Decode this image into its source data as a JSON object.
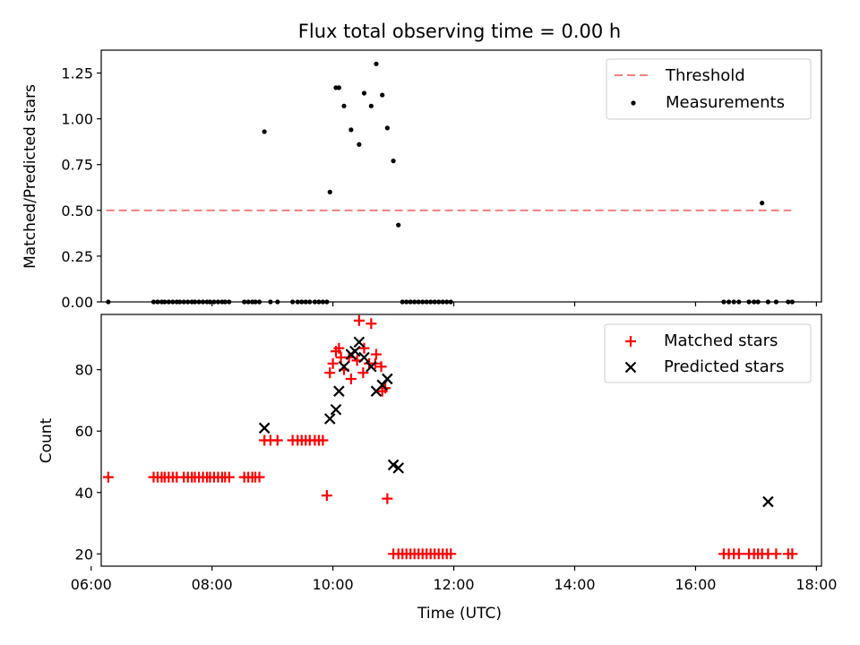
{
  "title": "Flux total observing time = 0.00 h",
  "colors": {
    "threshold": "#f08080",
    "measurements": "#000000",
    "matched": "#ff0000",
    "predicted": "#000000"
  },
  "chart_data": [
    {
      "type": "scatter",
      "title": "Flux total observing time = 0.00 h",
      "ylabel": "Matched/Predicted stars",
      "xlim": [
        "06:10",
        "18:05"
      ],
      "ylim": [
        0,
        1.375
      ],
      "yticks": [
        "0.00",
        "0.25",
        "0.50",
        "0.75",
        "1.00",
        "1.25"
      ],
      "legend_position": "upper right",
      "threshold": {
        "label": "Threshold",
        "value": 0.5,
        "x": [
          "06:15",
          "17:35"
        ]
      },
      "measurements": {
        "label": "Measurements",
        "x": [
          "06:17",
          "07:02",
          "07:06",
          "07:10",
          "07:13",
          "07:17",
          "07:21",
          "07:25",
          "07:28",
          "07:32",
          "07:36",
          "07:40",
          "07:43",
          "07:47",
          "07:51",
          "07:55",
          "07:58",
          "08:02",
          "08:06",
          "08:10",
          "08:13",
          "08:17",
          "08:32",
          "08:36",
          "08:40",
          "08:43",
          "08:47",
          "08:52",
          "08:58",
          "09:05",
          "09:20",
          "09:25",
          "09:29",
          "09:33",
          "09:37",
          "09:42",
          "09:46",
          "09:50",
          "09:54",
          "09:57",
          "10:03",
          "10:06",
          "10:11",
          "10:18",
          "10:26",
          "10:31",
          "10:38",
          "10:43",
          "10:49",
          "10:54",
          "11:00",
          "11:05",
          "11:09",
          "11:13",
          "11:17",
          "11:21",
          "11:25",
          "11:29",
          "11:33",
          "11:37",
          "11:41",
          "11:45",
          "11:49",
          "11:53",
          "11:57",
          "16:28",
          "16:33",
          "16:38",
          "16:43",
          "16:53",
          "16:58",
          "17:02",
          "17:06",
          "17:12",
          "17:20",
          "17:32",
          "17:36"
        ],
        "y": [
          0,
          0,
          0,
          0,
          0,
          0,
          0,
          0,
          0,
          0,
          0,
          0,
          0,
          0,
          0,
          0,
          0,
          0,
          0,
          0,
          0,
          0,
          0,
          0,
          0,
          0,
          0,
          0.93,
          0,
          0,
          0,
          0,
          0,
          0,
          0,
          0,
          0,
          0,
          0,
          0.6,
          1.17,
          1.17,
          1.07,
          0.94,
          0.86,
          1.14,
          1.07,
          1.3,
          1.13,
          0.95,
          0.77,
          0.42,
          0,
          0,
          0,
          0,
          0,
          0,
          0,
          0,
          0,
          0,
          0,
          0,
          0,
          0,
          0,
          0,
          0,
          0,
          0,
          0,
          0.54,
          0,
          0,
          0,
          0
        ]
      }
    },
    {
      "type": "scatter",
      "xlabel": "Time (UTC)",
      "ylabel": "Count",
      "xlim": [
        "06:10",
        "18:05"
      ],
      "ylim": [
        16,
        98
      ],
      "xticks": [
        "06:00",
        "08:00",
        "10:00",
        "12:00",
        "14:00",
        "16:00",
        "18:00"
      ],
      "yticks": [
        "20",
        "40",
        "60",
        "80"
      ],
      "legend_position": "upper right",
      "series": [
        {
          "name": "Matched stars",
          "marker": "+",
          "x": [
            "06:17",
            "07:02",
            "07:06",
            "07:10",
            "07:13",
            "07:17",
            "07:21",
            "07:25",
            "07:32",
            "07:36",
            "07:40",
            "07:43",
            "07:47",
            "07:51",
            "07:55",
            "07:58",
            "08:02",
            "08:06",
            "08:10",
            "08:13",
            "08:17",
            "08:32",
            "08:36",
            "08:40",
            "08:43",
            "08:47",
            "08:52",
            "08:58",
            "09:05",
            "09:20",
            "09:25",
            "09:29",
            "09:33",
            "09:37",
            "09:42",
            "09:46",
            "09:50",
            "09:54",
            "09:57",
            "10:03",
            "10:06",
            "10:11",
            "10:18",
            "10:26",
            "10:31",
            "10:38",
            "10:43",
            "10:49",
            "10:54",
            "11:00",
            "11:05",
            "11:09",
            "11:13",
            "11:17",
            "11:21",
            "11:25",
            "11:29",
            "11:33",
            "11:37",
            "11:41",
            "11:45",
            "11:49",
            "11:53",
            "11:57",
            "16:28",
            "16:33",
            "16:38",
            "16:43",
            "16:53",
            "16:58",
            "17:02",
            "17:06",
            "17:12",
            "17:20",
            "17:32",
            "17:36",
            "10:00",
            "10:08",
            "10:16",
            "10:24",
            "10:30",
            "10:36",
            "10:42",
            "10:48",
            "10:52"
          ],
          "y": [
            45,
            45,
            45,
            45,
            45,
            45,
            45,
            45,
            45,
            45,
            45,
            45,
            45,
            45,
            45,
            45,
            45,
            45,
            45,
            45,
            45,
            45,
            45,
            45,
            45,
            45,
            57,
            57,
            57,
            57,
            57,
            57,
            57,
            57,
            57,
            57,
            57,
            39,
            79,
            86,
            87,
            80,
            77,
            96,
            87,
            95,
            85,
            73,
            38,
            20,
            20,
            20,
            20,
            20,
            20,
            20,
            20,
            20,
            20,
            20,
            20,
            20,
            20,
            20,
            20,
            20,
            20,
            20,
            20,
            20,
            20,
            20,
            20,
            20,
            20,
            20,
            82,
            84,
            84,
            83,
            79,
            82,
            82,
            81,
            74
          ]
        },
        {
          "name": "Predicted stars",
          "marker": "x",
          "x": [
            "08:52",
            "09:57",
            "10:03",
            "10:06",
            "10:11",
            "10:18",
            "10:22",
            "10:26",
            "10:31",
            "10:38",
            "10:43",
            "10:49",
            "10:54",
            "11:00",
            "11:05",
            "17:12"
          ],
          "y": [
            61,
            64,
            67,
            73,
            81,
            85,
            86,
            89,
            84,
            81,
            73,
            75,
            77,
            49,
            48,
            37
          ]
        }
      ]
    }
  ]
}
